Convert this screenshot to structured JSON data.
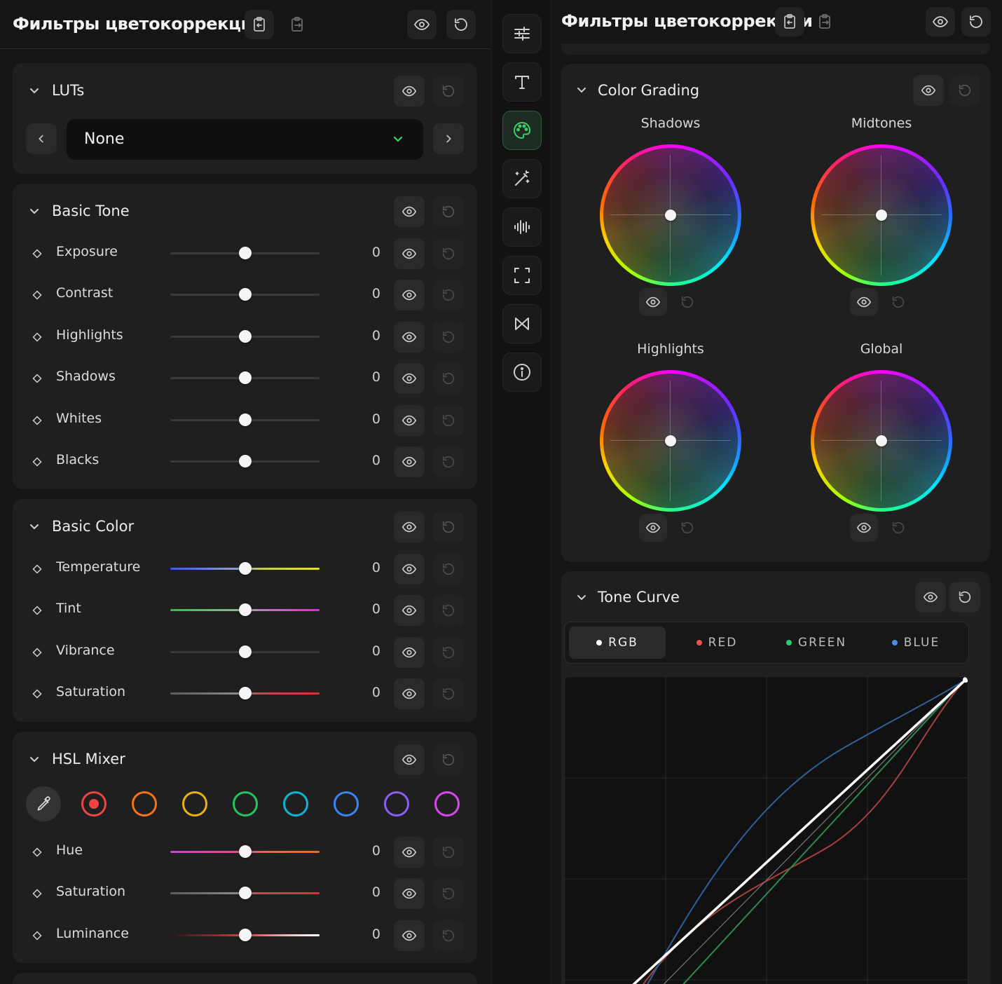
{
  "colors": {
    "accent": "#3ad16a",
    "panel_bg": "#151515",
    "card_bg": "#1f1f1f"
  },
  "left_panel": {
    "title": "Фильтры цветокоррекции",
    "header_icons": [
      "paste-icon",
      "export-icon",
      "eye-icon",
      "reset-icon"
    ]
  },
  "right_panel": {
    "title": "Фильтры цветокоррекции",
    "header_icons": [
      "paste-icon",
      "export-icon",
      "eye-icon",
      "reset-icon"
    ]
  },
  "luts": {
    "title": "LUTs",
    "selected": "None"
  },
  "basic_tone": {
    "title": "Basic Tone",
    "rows": [
      {
        "label": "Exposure",
        "value": "0",
        "position": 0.5
      },
      {
        "label": "Contrast",
        "value": "0",
        "position": 0.5
      },
      {
        "label": "Highlights",
        "value": "0",
        "position": 0.5
      },
      {
        "label": "Shadows",
        "value": "0",
        "position": 0.5
      },
      {
        "label": "Whites",
        "value": "0",
        "position": 0.5
      },
      {
        "label": "Blacks",
        "value": "0",
        "position": 0.5
      }
    ]
  },
  "basic_color": {
    "title": "Basic Color",
    "rows": [
      {
        "label": "Temperature",
        "value": "0",
        "position": 0.5
      },
      {
        "label": "Tint",
        "value": "0",
        "position": 0.5
      },
      {
        "label": "Vibrance",
        "value": "0",
        "position": 0.5
      },
      {
        "label": "Saturation",
        "value": "0",
        "position": 0.5
      }
    ]
  },
  "hsl_mixer": {
    "title": "HSL Mixer",
    "swatches": [
      {
        "name": "red",
        "color": "#ef4444",
        "selected": true
      },
      {
        "name": "orange",
        "color": "#f97316",
        "selected": false
      },
      {
        "name": "yellow",
        "color": "#eab308",
        "selected": false
      },
      {
        "name": "green",
        "color": "#22c55e",
        "selected": false
      },
      {
        "name": "aqua",
        "color": "#06b6d4",
        "selected": false
      },
      {
        "name": "blue",
        "color": "#3b82f6",
        "selected": false
      },
      {
        "name": "purple",
        "color": "#8b5cf6",
        "selected": false
      },
      {
        "name": "magenta",
        "color": "#d946ef",
        "selected": false
      }
    ],
    "rows": [
      {
        "label": "Hue",
        "value": "0",
        "position": 0.5
      },
      {
        "label": "Saturation",
        "value": "0",
        "position": 0.5
      },
      {
        "label": "Luminance",
        "value": "0",
        "position": 0.5
      }
    ]
  },
  "color_grading": {
    "title": "Color Grading",
    "wheels": [
      {
        "label": "Shadows"
      },
      {
        "label": "Midtones"
      },
      {
        "label": "Highlights"
      },
      {
        "label": "Global"
      }
    ]
  },
  "tone_curve": {
    "title": "Tone Curve",
    "tabs": [
      {
        "label": "RGB",
        "dot": "#ffffff",
        "active": true
      },
      {
        "label": "RED",
        "dot": "#ef5350",
        "active": false
      },
      {
        "label": "GREEN",
        "dot": "#2ecc71",
        "active": false
      },
      {
        "label": "BLUE",
        "dot": "#4a90e2",
        "active": false
      }
    ]
  },
  "toolbar": {
    "items": [
      {
        "icon": "sliders-icon",
        "active": false
      },
      {
        "icon": "text-icon",
        "active": false
      },
      {
        "icon": "palette-icon",
        "active": true
      },
      {
        "icon": "magic-wand-icon",
        "active": false
      },
      {
        "icon": "audio-wave-icon",
        "active": false
      },
      {
        "icon": "crop-frame-icon",
        "active": false
      },
      {
        "icon": "transition-icon",
        "active": false
      },
      {
        "icon": "info-icon",
        "active": false
      }
    ]
  }
}
